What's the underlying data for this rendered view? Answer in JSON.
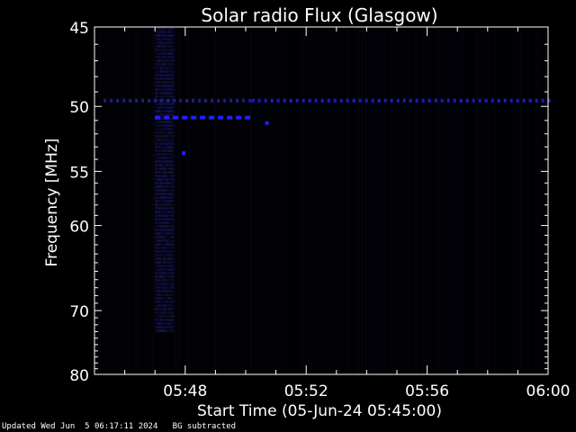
{
  "chart_data": {
    "type": "heatmap",
    "title": "Solar radio Flux (Glasgow)",
    "xlabel": "Start Time (05-Jun-24 05:45:00)",
    "ylabel": "Frequency [MHz]",
    "x_range_minutes": [
      0,
      15
    ],
    "x_ticks": [
      {
        "minute": 3,
        "label": "05:48"
      },
      {
        "minute": 7,
        "label": "05:52"
      },
      {
        "minute": 11,
        "label": "05:56"
      },
      {
        "minute": 15,
        "label": "06:00"
      }
    ],
    "y_range": [
      45,
      80
    ],
    "y_ticks": [
      45,
      50,
      55,
      60,
      70,
      80
    ],
    "y_scale": "reciprocal",
    "grid": false,
    "colors": {
      "background": "#000000",
      "signal_dim": "#12124a",
      "signal_bright": "#2020ff",
      "axes": "#ffffff"
    },
    "features": [
      {
        "type": "band",
        "freq_mhz": 49.6,
        "start_min": 5.2,
        "end_min": 15,
        "intensity": 0.7
      },
      {
        "type": "band",
        "freq_mhz": 49.6,
        "start_min": 0.3,
        "end_min": 5.2,
        "intensity": 0.3
      },
      {
        "type": "band",
        "freq_mhz": 50.8,
        "start_min": 2.0,
        "end_min": 5.2,
        "intensity": 1.0
      },
      {
        "type": "point",
        "freq_mhz": 51.2,
        "start_min": 5.7,
        "intensity": 0.9
      },
      {
        "type": "point",
        "freq_mhz": 53.5,
        "start_min": 2.95,
        "intensity": 1.0
      },
      {
        "type": "column",
        "start_min": 2.0,
        "end_min": 2.6,
        "freq_from": 45,
        "freq_to": 73,
        "intensity": 0.35
      }
    ]
  },
  "footer": {
    "updated": "Updated Wed Jun  5 06:17:11 2024",
    "note": "BG subtracted"
  }
}
